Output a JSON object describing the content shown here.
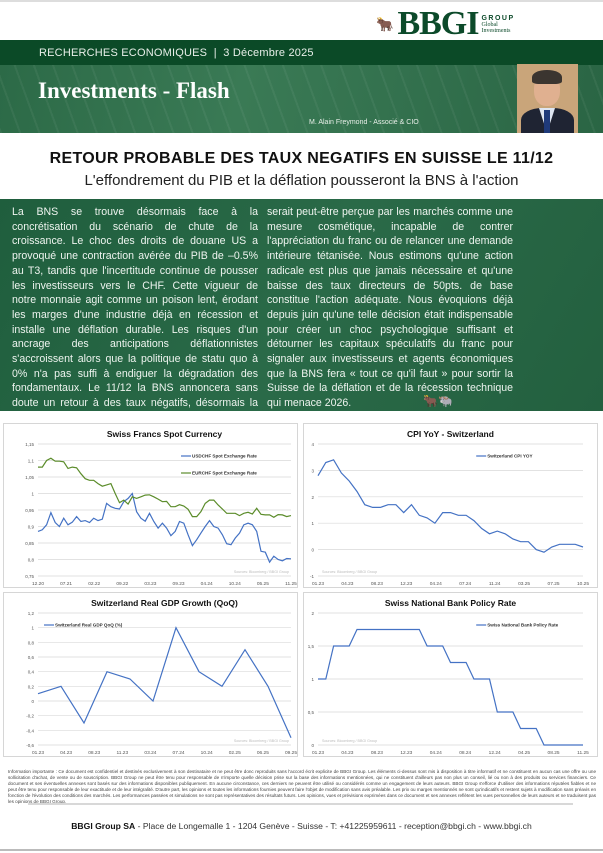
{
  "logo": {
    "text": "BBGI",
    "group": "GROUP",
    "line1": "Global",
    "line2": "Investments"
  },
  "header": {
    "section": "RECHERCHES ECONOMIQUES  |  3 Décembre 2025",
    "title": "Investments - Flash",
    "author": "M. Alain Freymond - Associé & CIO"
  },
  "article": {
    "title": "RETOUR PROBABLE DES TAUX NEGATIFS EN SUISSE LE 11/12",
    "subtitle": "L'effondrement du PIB et la déflation pousseront la BNS à l'action",
    "col1": "La BNS se trouve désormais face à la concrétisation du scénario de chute de la croissance. Le choc des droits de douane US a provoqué une contraction avérée du PIB de –0.5% au T3, tandis que l'incertitude continue de pousser les investisseurs vers le CHF. Cette vigueur de notre monnaie agit comme un poison lent, érodant les marges d'une industrie déjà en récession et installe une déflation durable. Les risques d'un ancrage des anticipations déflationnistes s'accroissent alors que la politique de statu quo à 0% n'a pas suffi à endiguer la dégradation des fondamentaux. Le 11/12 la BNS annoncera sans doute un retour à des taux négatifs, désormais la seule voie pour éviter une spirale dépressive. Une simple baisse de 25 points de base",
    "col2": "serait peut-être perçue par les marchés comme une mesure cosmétique, incapable de contrer l'appréciation du franc ou de relancer une demande intérieure tétanisée. Nous estimons qu'une action radicale est plus que jamais nécessaire et qu'une baisse des taux directeurs de 50pts.  de base constitue l'action adéquate. Nous évoquions déjà depuis juin qu'une telle décision était indispensable pour créer un choc psychologique suffisant et détourner les capitaux spéculatifs du franc pour signaler aux investisseurs et agents économiques que la BNS fera « tout ce qu'il faut » pour sortir la Suisse de la déflation et de la récession technique qui menace 2026."
  },
  "chart_data": [
    {
      "type": "line",
      "title": "Swiss Francs Spot Currency",
      "source": "Sources: Bloomberg / BBGI Group",
      "legend_position": "top-right",
      "ylim": [
        0.75,
        1.15
      ],
      "yticks": [
        "0,75",
        "0,8",
        "0,85",
        "0,9",
        "0,95",
        "1",
        "1,05",
        "1,1",
        "1,15"
      ],
      "ytick_values": [
        0.75,
        0.8,
        0.85,
        0.9,
        0.95,
        1,
        1.05,
        1.1,
        1.15
      ],
      "xticks": [
        "12.20",
        "07.21",
        "02.22",
        "09.22",
        "03.23",
        "09.23",
        "04.24",
        "10.24",
        "05.25",
        "11.25"
      ],
      "series": [
        {
          "name": "USDCHF Spot Exchange Rate",
          "color": "#4472c4",
          "values": [
            0.885,
            0.89,
            0.905,
            0.942,
            0.912,
            0.9,
            0.925,
            0.905,
            0.913,
            0.93,
            0.915,
            0.918,
            0.912,
            0.925,
            0.918,
            0.922,
            0.97,
            0.96,
            0.955,
            0.953,
            0.975,
            0.985,
            1.0,
            0.945,
            0.925,
            0.916,
            0.94,
            0.915,
            0.895,
            0.91,
            0.895,
            0.872,
            0.885,
            0.915,
            0.91,
            0.875,
            0.842,
            0.86,
            0.88,
            0.9,
            0.918,
            0.9,
            0.895,
            0.875,
            0.848,
            0.845,
            0.865,
            0.88,
            0.905,
            0.91,
            0.905,
            0.885,
            0.825,
            0.822,
            0.792,
            0.81,
            0.8,
            0.796,
            0.803,
            0.802
          ]
        },
        {
          "name": "EURCHF Spot Exchange Rate",
          "color": "#5b8c2a",
          "values": [
            1.08,
            1.08,
            1.1,
            1.107,
            1.098,
            1.098,
            1.096,
            1.076,
            1.08,
            1.078,
            1.06,
            1.045,
            1.04,
            1.04,
            1.03,
            1.022,
            1.026,
            1.03,
            1.0,
            0.972,
            0.98,
            0.968,
            0.99,
            0.985,
            0.99,
            0.995,
            0.996,
            0.99,
            0.983,
            0.975,
            0.976,
            0.96,
            0.96,
            0.966,
            0.962,
            0.952,
            0.93,
            0.93,
            0.945,
            0.97,
            0.98,
            0.98,
            0.965,
            0.953,
            0.94,
            0.94,
            0.94,
            0.933,
            0.94,
            0.943,
            0.938,
            0.955,
            0.937,
            0.935,
            0.935,
            0.928,
            0.936,
            0.935,
            0.93,
            0.933
          ]
        }
      ]
    },
    {
      "type": "line",
      "title": "CPI YoY - Switzerland",
      "source": "Sources: Bloomberg / BBGI Group",
      "legend_position": "top-right",
      "ylim": [
        -1,
        4
      ],
      "yticks": [
        "-1",
        "0",
        "1",
        "2",
        "3",
        "4"
      ],
      "ytick_values": [
        -1,
        0,
        1,
        2,
        3,
        4
      ],
      "xticks": [
        "01.23",
        "04.23",
        "08.23",
        "12.23",
        "04.24",
        "07.24",
        "11.24",
        "03.25",
        "07.25",
        "10.25"
      ],
      "series": [
        {
          "name": "Switzerland CPI YOY",
          "color": "#4472c4",
          "values": [
            2.8,
            3.3,
            3.4,
            2.9,
            2.6,
            2.2,
            1.7,
            1.6,
            1.6,
            1.7,
            1.7,
            1.4,
            1.7,
            1.3,
            1.2,
            1.0,
            1.4,
            1.4,
            1.3,
            1.3,
            1.1,
            0.8,
            0.6,
            0.7,
            0.6,
            0.4,
            0.3,
            0.3,
            0.0,
            -0.1,
            0.1,
            0.2,
            0.2,
            0.2,
            0.1
          ]
        }
      ]
    },
    {
      "type": "line",
      "title": "Switzerland Real GDP Growth (QoQ)",
      "source": "Sources: Bloomberg / BBGI Group",
      "legend_position": "top-left",
      "ylim": [
        -0.6,
        1.2
      ],
      "yticks": [
        "-0,6",
        "-0,4",
        "-0,2",
        "0",
        "0,2",
        "0,4",
        "0,6",
        "0,8",
        "1",
        "1,2"
      ],
      "ytick_values": [
        -0.6,
        -0.4,
        -0.2,
        0,
        0.2,
        0.4,
        0.6,
        0.8,
        1,
        1.2
      ],
      "xticks": [
        "01.23",
        "04.23",
        "08.23",
        "11.23",
        "03.24",
        "07.24",
        "10.24",
        "02.25",
        "06.25",
        "09.25"
      ],
      "series": [
        {
          "name": "Switzerland Real GDP QoQ (%)",
          "color": "#4472c4",
          "values": [
            0.1,
            0.2,
            -0.3,
            0.4,
            0.3,
            0.0,
            1.0,
            0.4,
            0.2,
            0.7,
            0.2,
            -0.5
          ]
        }
      ]
    },
    {
      "type": "line",
      "title": "Swiss National Bank Policy Rate",
      "source": "Sources: Bloomberg / BBGI Group",
      "legend_position": "top-right",
      "ylim": [
        0,
        2
      ],
      "yticks": [
        "0",
        "0,5",
        "1",
        "1,5",
        "2"
      ],
      "ytick_values": [
        0,
        0.5,
        1,
        1.5,
        2
      ],
      "xticks": [
        "01.23",
        "04.23",
        "08.23",
        "12.23",
        "04.24",
        "08.24",
        "12.24",
        "04.25",
        "08.25",
        "11.25"
      ],
      "series": [
        {
          "name": "Swiss National Bank Policy Rate",
          "color": "#4472c4",
          "values": [
            1,
            1,
            1.5,
            1.5,
            1.5,
            1.75,
            1.75,
            1.75,
            1.75,
            1.75,
            1.75,
            1.75,
            1.75,
            1.75,
            1.5,
            1.5,
            1.5,
            1.25,
            1.25,
            1.25,
            1,
            1,
            1,
            0.5,
            0.5,
            0.5,
            0.25,
            0.25,
            0.25,
            0,
            0,
            0,
            0,
            0,
            0
          ]
        }
      ]
    }
  ],
  "disclaimer": "Information importante : Ce document est confidentiel et destinés exclusivement à son destinataire et ne peut être donc reproduits sans l'accord écrit explicite de BBGI Group. Les éléments ci-dessus sont mis à disposition à titre informatif et ne constituent en aucun cas une offre ou une sollicitation d'achat, de vente ou de souscription. BBGI Group ne peut être tenu pour responsable de n'importe quelle décision prise sur la base des informations mentionnées, qui ne constituent d'ailleurs pas non plus un conseil, lié ou non à des produits ou services financiers. Ce document et ses éventuelles annexes sont basés sur des informations disponibles publiquement. En aucune circonstance, ces derniers ne peuvent être utilisé ou considérés comme un engagement de leurs auteurs. BBGI Group s'efforce d'utiliser des informations réputées fiables et ne peut être tenu pour responsable de leur exactitude et de leur intégralité. D'autre part, les opinions et toutes les informations fournies peuvent faire l'objet de modification sans avis préalable. Les prix ou marges mentionnés ne sont qu'indicatifs et restent sujets à modification sans préavis en fonction de l'évolution des conditions des marchés. Les performances passées et simulations ne sont pas représentatives des résultats futurs. Les opinions, vues et prévisions exprimées dans ce document et ses annexes reflètent les vues personnelles de leurs auteurs et ne traduisent pas les opinions de BBGI Group.",
  "footer": {
    "company": "BBGI Group SA",
    "details": " - Place de Longemalle 1 - 1204 Genève - Suisse - T: +41225959611 - reception@bbgi.ch - www.bbgi.ch"
  }
}
